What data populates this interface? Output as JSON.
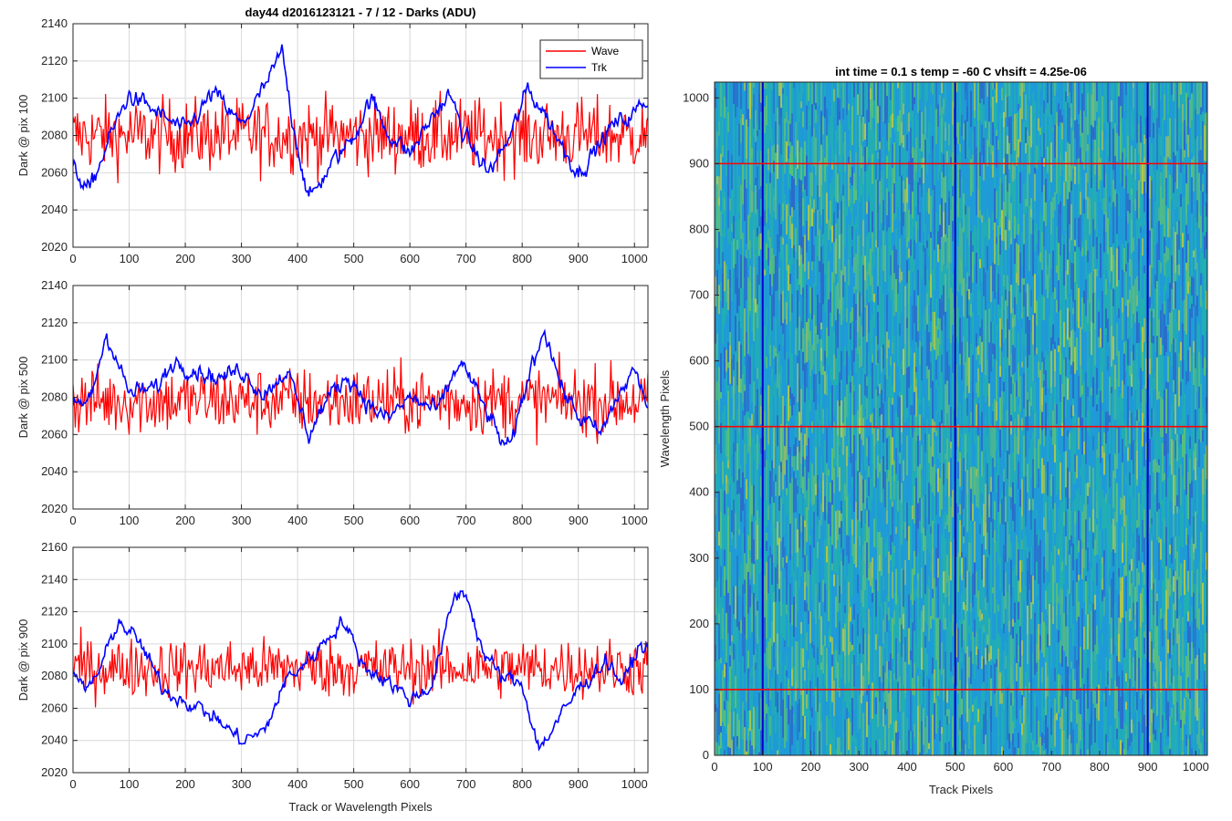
{
  "figure_title": "day44 d2016123121 - 7 / 12 - Darks (ADU)",
  "chart_data": [
    {
      "type": "line",
      "xlabel": "",
      "ylabel": "Dark @ pix 100",
      "xlim": [
        0,
        1024
      ],
      "ylim": [
        2020,
        2140
      ],
      "xticks": [
        "0",
        "100",
        "200",
        "300",
        "400",
        "500",
        "600",
        "700",
        "800",
        "900",
        "1000"
      ],
      "yticks": [
        "2020",
        "2040",
        "2060",
        "2080",
        "2100",
        "2120",
        "2140"
      ],
      "grid": true,
      "legend": "top-right",
      "series": [
        {
          "name": "Wave",
          "color": "#ff0000",
          "mean": 2080,
          "noise": 14,
          "kind": "noise",
          "anchors": [
            [
              0,
              2080
            ],
            [
              1024,
              2080
            ]
          ]
        },
        {
          "name": "Trk",
          "color": "#0000ff",
          "noise": 5,
          "kind": "smooth",
          "anchors": [
            [
              0,
              2062
            ],
            [
              30,
              2050
            ],
            [
              60,
              2075
            ],
            [
              100,
              2102
            ],
            [
              150,
              2092
            ],
            [
              200,
              2082
            ],
            [
              250,
              2103
            ],
            [
              300,
              2085
            ],
            [
              350,
              2110
            ],
            [
              372,
              2125
            ],
            [
              390,
              2090
            ],
            [
              420,
              2045
            ],
            [
              450,
              2060
            ],
            [
              500,
              2080
            ],
            [
              530,
              2100
            ],
            [
              560,
              2082
            ],
            [
              600,
              2070
            ],
            [
              640,
              2090
            ],
            [
              670,
              2102
            ],
            [
              700,
              2078
            ],
            [
              740,
              2060
            ],
            [
              780,
              2080
            ],
            [
              810,
              2105
            ],
            [
              840,
              2092
            ],
            [
              870,
              2075
            ],
            [
              900,
              2060
            ],
            [
              930,
              2072
            ],
            [
              960,
              2085
            ],
            [
              1000,
              2092
            ],
            [
              1024,
              2100
            ]
          ]
        }
      ]
    },
    {
      "type": "line",
      "xlabel": "",
      "ylabel": "Dark @ pix 500",
      "xlim": [
        0,
        1024
      ],
      "ylim": [
        2020,
        2140
      ],
      "xticks": [
        "0",
        "100",
        "200",
        "300",
        "400",
        "500",
        "600",
        "700",
        "800",
        "900",
        "1000"
      ],
      "yticks": [
        "2020",
        "2040",
        "2060",
        "2080",
        "2100",
        "2120",
        "2140"
      ],
      "grid": true,
      "series": [
        {
          "name": "Wave",
          "color": "#ff0000",
          "noise": 13,
          "kind": "noise",
          "anchors": [
            [
              0,
              2078
            ],
            [
              1024,
              2078
            ]
          ]
        },
        {
          "name": "Trk",
          "color": "#0000ff",
          "noise": 5,
          "kind": "smooth",
          "anchors": [
            [
              0,
              2075
            ],
            [
              30,
              2078
            ],
            [
              60,
              2115
            ],
            [
              100,
              2082
            ],
            [
              150,
              2085
            ],
            [
              180,
              2100
            ],
            [
              220,
              2095
            ],
            [
              260,
              2090
            ],
            [
              300,
              2095
            ],
            [
              340,
              2082
            ],
            [
              380,
              2095
            ],
            [
              420,
              2060
            ],
            [
              450,
              2078
            ],
            [
              490,
              2092
            ],
            [
              530,
              2075
            ],
            [
              560,
              2068
            ],
            [
              600,
              2080
            ],
            [
              650,
              2072
            ],
            [
              690,
              2100
            ],
            [
              720,
              2082
            ],
            [
              760,
              2058
            ],
            [
              780,
              2052
            ],
            [
              810,
              2090
            ],
            [
              840,
              2118
            ],
            [
              870,
              2085
            ],
            [
              900,
              2070
            ],
            [
              940,
              2060
            ],
            [
              970,
              2080
            ],
            [
              1000,
              2095
            ],
            [
              1024,
              2075
            ]
          ]
        }
      ]
    },
    {
      "type": "line",
      "xlabel": "Track or Wavelength Pixels",
      "ylabel": "Dark @ pix 900",
      "xlim": [
        0,
        1024
      ],
      "ylim": [
        2020,
        2160
      ],
      "xticks": [
        "0",
        "100",
        "200",
        "300",
        "400",
        "500",
        "600",
        "700",
        "800",
        "900",
        "1000"
      ],
      "yticks": [
        "2020",
        "2040",
        "2060",
        "2080",
        "2100",
        "2120",
        "2140",
        "2160"
      ],
      "grid": true,
      "series": [
        {
          "name": "Wave",
          "color": "#ff0000",
          "noise": 13,
          "kind": "noise",
          "anchors": [
            [
              0,
              2085
            ],
            [
              1024,
              2085
            ]
          ]
        },
        {
          "name": "Trk",
          "color": "#0000ff",
          "noise": 5,
          "kind": "smooth",
          "anchors": [
            [
              0,
              2085
            ],
            [
              20,
              2070
            ],
            [
              50,
              2085
            ],
            [
              80,
              2115
            ],
            [
              120,
              2100
            ],
            [
              160,
              2072
            ],
            [
              200,
              2065
            ],
            [
              250,
              2055
            ],
            [
              300,
              2040
            ],
            [
              340,
              2045
            ],
            [
              380,
              2078
            ],
            [
              420,
              2090
            ],
            [
              480,
              2115
            ],
            [
              520,
              2085
            ],
            [
              560,
              2078
            ],
            [
              600,
              2065
            ],
            [
              640,
              2075
            ],
            [
              680,
              2130
            ],
            [
              700,
              2132
            ],
            [
              730,
              2095
            ],
            [
              760,
              2080
            ],
            [
              800,
              2075
            ],
            [
              830,
              2035
            ],
            [
              860,
              2050
            ],
            [
              900,
              2072
            ],
            [
              950,
              2090
            ],
            [
              980,
              2075
            ],
            [
              1010,
              2100
            ],
            [
              1024,
              2095
            ]
          ]
        }
      ]
    },
    {
      "type": "heatmap",
      "title": "int time = 0.1 s   temp = -60 C   vhsift = 4.25e-06",
      "xlabel": "Track Pixels",
      "ylabel": "Wavelength Pixels",
      "xlim": [
        0,
        1024
      ],
      "ylim": [
        0,
        1024
      ],
      "xticks": [
        "0",
        "100",
        "200",
        "300",
        "400",
        "500",
        "600",
        "700",
        "800",
        "900",
        "1000"
      ],
      "yticks": [
        "0",
        "100",
        "200",
        "300",
        "400",
        "500",
        "600",
        "700",
        "800",
        "900",
        "1000"
      ],
      "colormap": [
        "#2b6ac9",
        "#1f9bd6",
        "#22b0b0",
        "#5ac07a",
        "#b0c84a"
      ],
      "vertical_markers": {
        "color": "#0000cc",
        "x": [
          100,
          500,
          900
        ]
      },
      "horizontal_markers": {
        "color": "#ff0000",
        "y": [
          100,
          500,
          900
        ]
      }
    }
  ]
}
